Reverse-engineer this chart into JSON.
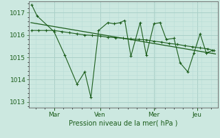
{
  "bg_color": "#cce8e0",
  "grid_major_color": "#aad0c8",
  "grid_minor_color": "#b8dcd6",
  "line_color": "#1a5c1a",
  "title": "Pression niveau de la mer( hPa )",
  "ylim": [
    1012.75,
    1017.5
  ],
  "yticks": [
    1013,
    1014,
    1015,
    1016,
    1017
  ],
  "xlim": [
    -0.15,
    12.15
  ],
  "xtick_labels": [
    "Mar",
    "Ven",
    "Mer",
    "Jeu"
  ],
  "xtick_positions": [
    1.5,
    4.5,
    8.0,
    10.8
  ],
  "series1_x": [
    0.05,
    0.4,
    1.5,
    2.2,
    3.0,
    3.5,
    3.9,
    4.4,
    5.0,
    5.4,
    5.8,
    6.1,
    6.5,
    7.1,
    7.5,
    8.0,
    8.4,
    8.8,
    9.3,
    9.7,
    10.2,
    10.6,
    11.0,
    11.4,
    11.8
  ],
  "series1_y": [
    1017.35,
    1016.85,
    1016.15,
    1015.1,
    1013.8,
    1014.35,
    1013.2,
    1016.2,
    1016.55,
    1016.5,
    1016.55,
    1016.65,
    1015.05,
    1016.55,
    1015.1,
    1016.5,
    1016.55,
    1015.8,
    1015.85,
    1014.75,
    1014.35,
    1015.2,
    1016.05,
    1015.2,
    1015.3
  ],
  "series2_x": [
    0.05,
    0.5,
    1.0,
    1.5,
    2.0,
    2.5,
    3.0,
    3.5,
    4.0,
    4.5,
    5.0,
    5.5,
    6.0,
    6.5,
    7.0,
    7.5,
    8.0,
    8.5,
    9.0,
    9.5,
    10.0,
    10.5,
    11.0,
    11.5,
    11.9
  ],
  "series2_y": [
    1016.2,
    1016.2,
    1016.2,
    1016.2,
    1016.15,
    1016.1,
    1016.05,
    1016.0,
    1015.98,
    1015.95,
    1015.9,
    1015.88,
    1015.85,
    1015.82,
    1015.8,
    1015.78,
    1015.72,
    1015.68,
    1015.62,
    1015.58,
    1015.52,
    1015.47,
    1015.42,
    1015.38,
    1015.3
  ],
  "trend_x": [
    0.0,
    12.0
  ],
  "trend_y": [
    1016.55,
    1015.15
  ]
}
